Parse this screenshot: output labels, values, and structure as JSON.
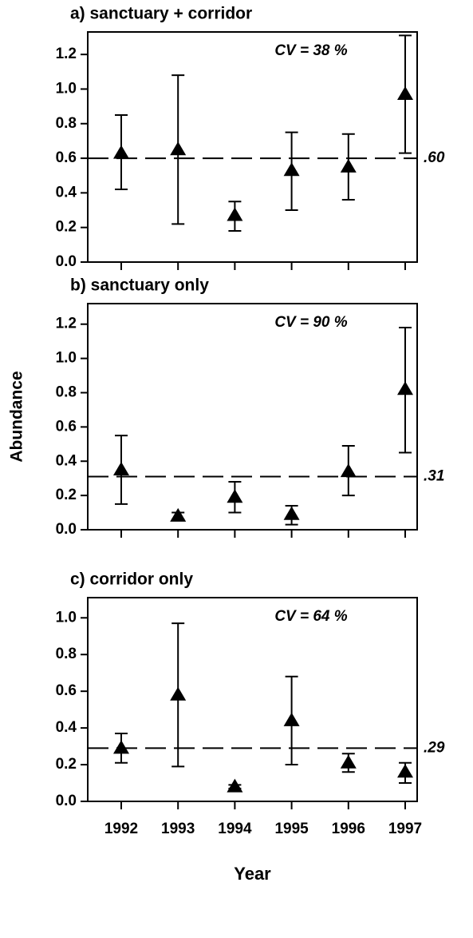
{
  "chart_data": [
    {
      "type": "errorbar",
      "title": "a) sanctuary + corridor",
      "annotation": "CV = 38 %",
      "values": [
        0.63,
        0.65,
        0.27,
        0.53,
        0.55,
        0.97
      ],
      "lower": [
        0.42,
        0.22,
        0.18,
        0.3,
        0.36,
        0.63
      ],
      "upper": [
        0.85,
        1.08,
        0.35,
        0.75,
        0.74,
        1.31
      ],
      "mean": 0.6,
      "mean_label": ".60",
      "ylim": [
        0,
        1.33
      ],
      "yticks": [
        {
          "value": 0,
          "label": "0.0"
        },
        {
          "value": 0.2,
          "label": "0.2"
        },
        {
          "value": 0.4,
          "label": "0.4"
        },
        {
          "value": 0.6,
          "label": "0.6"
        },
        {
          "value": 0.8,
          "label": "0.8"
        },
        {
          "value": 1.0,
          "label": "1.0"
        },
        {
          "value": 1.2,
          "label": "1.2"
        }
      ]
    },
    {
      "type": "errorbar",
      "title": "b) sanctuary only",
      "annotation": "CV = 90 %",
      "y_label": "Abundance",
      "values": [
        0.35,
        0.08,
        0.19,
        0.09,
        0.34,
        0.82
      ],
      "lower": [
        0.15,
        0.06,
        0.1,
        0.03,
        0.2,
        0.45
      ],
      "upper": [
        0.55,
        0.1,
        0.28,
        0.14,
        0.49,
        1.18
      ],
      "mean": 0.31,
      "mean_label": ".31",
      "ylim": [
        0,
        1.32
      ],
      "yticks": [
        {
          "value": 0,
          "label": "0.0"
        },
        {
          "value": 0.2,
          "label": "0.2"
        },
        {
          "value": 0.4,
          "label": "0.4"
        },
        {
          "value": 0.6,
          "label": "0.6"
        },
        {
          "value": 0.8,
          "label": "0.8"
        },
        {
          "value": 1.0,
          "label": "1.0"
        },
        {
          "value": 1.2,
          "label": "1.2"
        }
      ]
    },
    {
      "type": "errorbar",
      "title": "c) corridor only",
      "annotation": "CV = 64 %",
      "x_label": "Year",
      "categories": [
        "1992",
        "1993",
        "1994",
        "1995",
        "1996",
        "1997"
      ],
      "values": [
        0.29,
        0.58,
        0.08,
        0.44,
        0.21,
        0.16
      ],
      "lower": [
        0.21,
        0.19,
        0.07,
        0.2,
        0.16,
        0.1
      ],
      "upper": [
        0.37,
        0.97,
        0.09,
        0.68,
        0.26,
        0.21
      ],
      "mean": 0.29,
      "mean_label": ".29",
      "ylim": [
        0,
        1.11
      ],
      "yticks": [
        {
          "value": 0,
          "label": "0.0"
        },
        {
          "value": 0.2,
          "label": "0.2"
        },
        {
          "value": 0.4,
          "label": "0.4"
        },
        {
          "value": 0.6,
          "label": "0.6"
        },
        {
          "value": 0.8,
          "label": "0.8"
        },
        {
          "value": 1.0,
          "label": "1.0"
        }
      ]
    }
  ]
}
